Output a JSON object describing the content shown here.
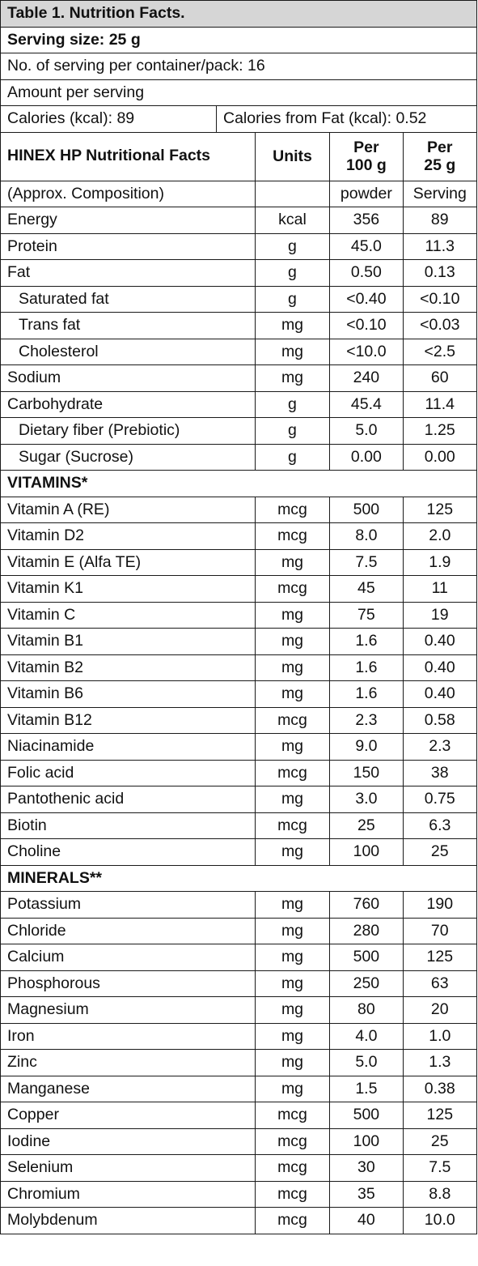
{
  "title": "Table 1. Nutrition Facts.",
  "serving_size": "Serving size: 25 g",
  "servings_per_container": "No. of serving per container/pack: 16",
  "amount_per_serving": "Amount per serving",
  "calories": "Calories (kcal): 89",
  "calories_from_fat": "Calories from Fat (kcal): 0.52",
  "header": {
    "name": "HINEX HP Nutritional Facts",
    "units": "Units",
    "per100_line1": "Per",
    "per100_line2": "100 g",
    "perserv_line1": "Per",
    "perserv_line2": "25 g"
  },
  "subheader": {
    "name": "(Approx. Composition)",
    "units": "",
    "per100": "powder",
    "perserv": "Serving"
  },
  "sections": [
    {
      "heading": "",
      "rows": [
        {
          "name": "Energy",
          "unit": "kcal",
          "per100": "356",
          "perserv": "89",
          "indent": false
        },
        {
          "name": "Protein",
          "unit": "g",
          "per100": "45.0",
          "perserv": "11.3",
          "indent": false
        },
        {
          "name": "Fat",
          "unit": "g",
          "per100": "0.50",
          "perserv": "0.13",
          "indent": false
        },
        {
          "name": "Saturated fat",
          "unit": "g",
          "per100": "<0.40",
          "perserv": "<0.10",
          "indent": true
        },
        {
          "name": "Trans fat",
          "unit": "mg",
          "per100": "<0.10",
          "perserv": "<0.03",
          "indent": true
        },
        {
          "name": "Cholesterol",
          "unit": "mg",
          "per100": "<10.0",
          "perserv": "<2.5",
          "indent": true
        },
        {
          "name": "Sodium",
          "unit": "mg",
          "per100": "240",
          "perserv": "60",
          "indent": false
        },
        {
          "name": "Carbohydrate",
          "unit": "g",
          "per100": "45.4",
          "perserv": "11.4",
          "indent": false
        },
        {
          "name": "Dietary fiber (Prebiotic)",
          "unit": "g",
          "per100": "5.0",
          "perserv": "1.25",
          "indent": true
        },
        {
          "name": "Sugar (Sucrose)",
          "unit": "g",
          "per100": "0.00",
          "perserv": "0.00",
          "indent": true
        }
      ]
    },
    {
      "heading": "VITAMINS*",
      "rows": [
        {
          "name": "Vitamin A (RE)",
          "unit": "mcg",
          "per100": "500",
          "perserv": "125",
          "indent": false
        },
        {
          "name": "Vitamin D2",
          "unit": "mcg",
          "per100": "8.0",
          "perserv": "2.0",
          "indent": false
        },
        {
          "name": "Vitamin E (Alfa TE)",
          "unit": "mg",
          "per100": "7.5",
          "perserv": "1.9",
          "indent": false
        },
        {
          "name": "Vitamin K1",
          "unit": "mcg",
          "per100": "45",
          "perserv": "11",
          "indent": false
        },
        {
          "name": "Vitamin C",
          "unit": "mg",
          "per100": "75",
          "perserv": "19",
          "indent": false
        },
        {
          "name": "Vitamin B1",
          "unit": "mg",
          "per100": "1.6",
          "perserv": "0.40",
          "indent": false
        },
        {
          "name": "Vitamin B2",
          "unit": "mg",
          "per100": "1.6",
          "perserv": "0.40",
          "indent": false
        },
        {
          "name": "Vitamin B6",
          "unit": "mg",
          "per100": "1.6",
          "perserv": "0.40",
          "indent": false
        },
        {
          "name": "Vitamin B12",
          "unit": "mcg",
          "per100": "2.3",
          "perserv": "0.58",
          "indent": false
        },
        {
          "name": "Niacinamide",
          "unit": "mg",
          "per100": "9.0",
          "perserv": "2.3",
          "indent": false
        },
        {
          "name": "Folic acid",
          "unit": "mcg",
          "per100": "150",
          "perserv": "38",
          "indent": false
        },
        {
          "name": "Pantothenic acid",
          "unit": "mg",
          "per100": "3.0",
          "perserv": "0.75",
          "indent": false
        },
        {
          "name": "Biotin",
          "unit": "mcg",
          "per100": "25",
          "perserv": "6.3",
          "indent": false
        },
        {
          "name": "Choline",
          "unit": "mg",
          "per100": "100",
          "perserv": "25",
          "indent": false
        }
      ]
    },
    {
      "heading": "MINERALS**",
      "rows": [
        {
          "name": "Potassium",
          "unit": "mg",
          "per100": "760",
          "perserv": "190",
          "indent": false
        },
        {
          "name": "Chloride",
          "unit": "mg",
          "per100": "280",
          "perserv": "70",
          "indent": false
        },
        {
          "name": "Calcium",
          "unit": "mg",
          "per100": "500",
          "perserv": "125",
          "indent": false
        },
        {
          "name": "Phosphorous",
          "unit": "mg",
          "per100": "250",
          "perserv": "63",
          "indent": false
        },
        {
          "name": "Magnesium",
          "unit": "mg",
          "per100": "80",
          "perserv": "20",
          "indent": false
        },
        {
          "name": "Iron",
          "unit": "mg",
          "per100": "4.0",
          "perserv": "1.0",
          "indent": false
        },
        {
          "name": "Zinc",
          "unit": "mg",
          "per100": "5.0",
          "perserv": "1.3",
          "indent": false
        },
        {
          "name": "Manganese",
          "unit": "mg",
          "per100": "1.5",
          "perserv": "0.38",
          "indent": false
        },
        {
          "name": "Copper",
          "unit": "mcg",
          "per100": "500",
          "perserv": "125",
          "indent": false
        },
        {
          "name": "Iodine",
          "unit": "mcg",
          "per100": "100",
          "perserv": "25",
          "indent": false
        },
        {
          "name": "Selenium",
          "unit": "mcg",
          "per100": "30",
          "perserv": "7.5",
          "indent": false
        },
        {
          "name": "Chromium",
          "unit": "mcg",
          "per100": "35",
          "perserv": "8.8",
          "indent": false
        },
        {
          "name": "Molybdenum",
          "unit": "mcg",
          "per100": "40",
          "perserv": "10.0",
          "indent": false
        }
      ]
    }
  ]
}
